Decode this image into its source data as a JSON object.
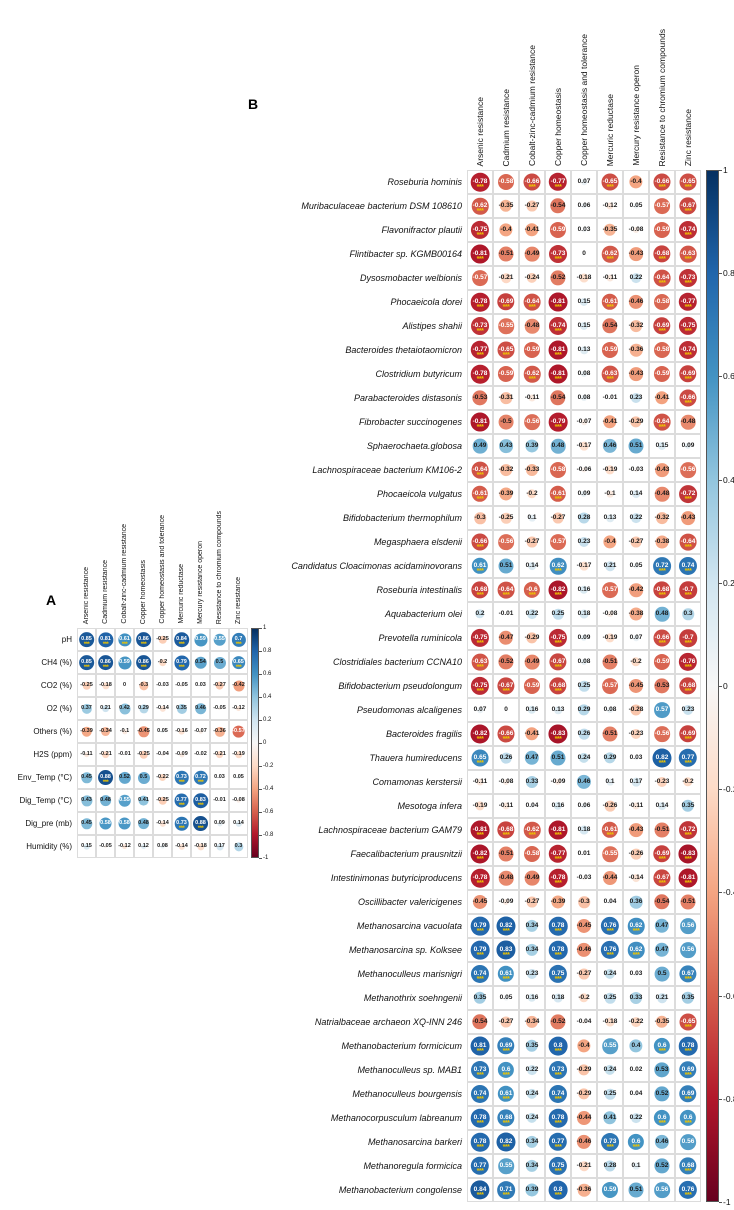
{
  "figure": {
    "panel_a_label": "A",
    "panel_b_label": "B"
  },
  "colorbar": {
    "ticks": [
      "1",
      "0.8",
      "0.6",
      "0.4",
      "0.2",
      "0",
      "-0.2",
      "-0.4",
      "-0.6",
      "-0.8",
      "-1"
    ],
    "top_color": "#053061",
    "zero_color": "#f7f7f7",
    "bottom_color": "#67001f"
  },
  "significance": {
    "marker": "***",
    "shown_when_abs_value_at_least": 0.6,
    "color": "#edc400"
  },
  "chart_data": [
    {
      "type": "heatmap",
      "panel": "A",
      "legend_position": "right",
      "value_range": [
        -1,
        1
      ],
      "columns": [
        "Arsenic resistance",
        "Cadmium resistance",
        "Cobalt-zinc-cadmium resistance",
        "Copper homeostasis",
        "Copper homeostasis and tolerance",
        "Mercuric reductase",
        "Mercury resistance operon",
        "Resistance to chromium compounds",
        "Zinc resistance"
      ],
      "rows": [
        "pH",
        "CH4 (%)",
        "CO2 (%)",
        "O2 (%)",
        "Others (%)",
        "H2S (ppm)",
        "Env_Temp (°C)",
        "Dig_Temp (°C)",
        "Dig_pre (mb)",
        "Humidity (%)"
      ],
      "values": [
        [
          0.85,
          0.81,
          0.61,
          0.86,
          -0.25,
          0.84,
          0.59,
          0.55,
          0.7
        ],
        [
          0.85,
          0.86,
          0.59,
          0.86,
          -0.2,
          0.79,
          0.54,
          0.5,
          0.65
        ],
        [
          -0.25,
          -0.18,
          0,
          -0.3,
          -0.03,
          -0.05,
          0.03,
          -0.27,
          -0.42
        ],
        [
          0.37,
          0.21,
          0.42,
          0.29,
          -0.14,
          0.35,
          0.46,
          -0.05,
          -0.12
        ],
        [
          -0.39,
          -0.34,
          -0.1,
          -0.45,
          0.05,
          -0.16,
          -0.07,
          -0.36,
          -0.57
        ],
        [
          -0.11,
          -0.21,
          -0.01,
          -0.25,
          -0.04,
          -0.09,
          -0.02,
          -0.21,
          -0.19
        ],
        [
          0.45,
          0.88,
          0.52,
          0.5,
          -0.22,
          0.73,
          0.72,
          0.03,
          0.05
        ],
        [
          0.43,
          0.48,
          0.55,
          0.41,
          -0.25,
          0.77,
          0.83,
          -0.01,
          -0.08
        ],
        [
          0.45,
          0.58,
          0.58,
          0.48,
          -0.14,
          0.73,
          0.88,
          0.09,
          0.14
        ],
        [
          0.15,
          -0.05,
          -0.12,
          0.12,
          0.08,
          -0.14,
          -0.18,
          0.17,
          0.3
        ]
      ]
    },
    {
      "type": "heatmap",
      "panel": "B",
      "legend_position": "right",
      "value_range": [
        -1,
        1
      ],
      "columns": [
        "Arsenic resistance",
        "Cadmium resistance",
        "Cobalt-zinc-cadmium resistance",
        "Copper homeostasis",
        "Copper homeostasis and tolerance",
        "Mercuric reductase",
        "Mercury resistance operon",
        "Resistance to chromium compounds",
        "Zinc resistance"
      ],
      "rows": [
        "Roseburia hominis",
        "Muribaculaceae bacterium DSM 108610",
        "Flavonifractor plautii",
        "Flintibacter sp. KGMB00164",
        "Dysosmobacter welbionis",
        "Phocaeicola dorei",
        "Alistipes shahii",
        "Bacteroides thetaiotaomicron",
        "Clostridium butyricum",
        "Parabacteroides distasonis",
        "Fibrobacter succinogenes",
        "Sphaerochaeta.globosa",
        "Lachnospiraceae bacterium KM106-2",
        "Phocaeicola vulgatus",
        "Bifidobacterium thermophilum",
        "Megasphaera elsdenii",
        "Candidatus Cloacimonas acidaminovorans",
        "Roseburia intestinalis",
        "Aquabacterium olei",
        "Prevotella ruminicola",
        "Clostridiales bacterium CCNA10",
        "Bifidobacterium pseudolongum",
        "Pseudomonas alcaligenes",
        "Bacteroides fragilis",
        "Thauera humireducens",
        "Comamonas kerstersii",
        "Mesotoga infera",
        "Lachnospiraceae bacterium GAM79",
        "Faecalibacterium prausnitzii",
        "Intestinimonas butyriciproducens",
        "Oscillibacter valericigenes",
        "Methanosarcina vacuolata",
        "Methanosarcina sp. Kolksee",
        "Methanoculleus marisnigri",
        "Methanothrix soehngenii",
        "Natrialbaceae archaeon XQ-INN 246",
        "Methanobacterium formicicum",
        "Methanoculleus sp. MAB1",
        "Methanoculleus bourgensis",
        "Methanocorpusculum labreanum",
        "Methanosarcina barkeri",
        "Methanoregula formicica",
        "Methanobacterium congolense"
      ],
      "values": [
        [
          -0.78,
          -0.58,
          -0.66,
          -0.77,
          0.07,
          -0.65,
          -0.4,
          -0.66,
          -0.65
        ],
        [
          -0.62,
          -0.35,
          -0.27,
          -0.54,
          0.06,
          -0.12,
          0.05,
          -0.57,
          -0.67
        ],
        [
          -0.75,
          -0.4,
          -0.41,
          -0.59,
          0.03,
          -0.35,
          -0.08,
          -0.59,
          -0.74
        ],
        [
          -0.81,
          -0.51,
          -0.49,
          -0.73,
          0,
          -0.62,
          -0.43,
          -0.68,
          -0.63
        ],
        [
          -0.57,
          -0.21,
          -0.24,
          -0.52,
          -0.18,
          -0.11,
          0.22,
          -0.64,
          -0.73
        ],
        [
          -0.78,
          -0.69,
          -0.64,
          -0.81,
          0.15,
          -0.61,
          -0.46,
          -0.58,
          -0.77
        ],
        [
          -0.73,
          -0.55,
          -0.48,
          -0.74,
          0.15,
          -0.54,
          -0.32,
          -0.69,
          -0.75
        ],
        [
          -0.77,
          -0.65,
          -0.59,
          -0.81,
          0.13,
          -0.59,
          -0.36,
          -0.58,
          -0.74
        ],
        [
          -0.78,
          -0.59,
          -0.62,
          -0.81,
          0.08,
          -0.63,
          -0.43,
          -0.59,
          -0.69
        ],
        [
          -0.53,
          -0.31,
          -0.11,
          -0.54,
          0.08,
          -0.01,
          0.23,
          -0.41,
          -0.66
        ],
        [
          -0.81,
          -0.5,
          -0.56,
          -0.79,
          -0.07,
          -0.41,
          -0.29,
          -0.64,
          -0.48
        ],
        [
          0.49,
          0.43,
          0.39,
          0.48,
          -0.17,
          0.46,
          0.51,
          0.15,
          0.09
        ],
        [
          -0.64,
          -0.32,
          -0.33,
          -0.58,
          -0.06,
          -0.19,
          -0.03,
          -0.43,
          -0.56
        ],
        [
          -0.61,
          -0.39,
          -0.2,
          -0.61,
          0.09,
          -0.1,
          0.14,
          -0.48,
          -0.72
        ],
        [
          -0.3,
          -0.25,
          0.1,
          -0.27,
          0.28,
          0.13,
          0.22,
          -0.32,
          -0.43
        ],
        [
          -0.66,
          -0.56,
          -0.27,
          -0.57,
          0.23,
          -0.4,
          -0.27,
          -0.38,
          -0.64
        ],
        [
          0.61,
          0.51,
          0.14,
          0.62,
          -0.17,
          0.21,
          0.05,
          0.72,
          0.74
        ],
        [
          -0.68,
          -0.64,
          -0.6,
          -0.82,
          0.16,
          -0.57,
          -0.42,
          -0.68,
          -0.7
        ],
        [
          0.2,
          -0.01,
          0.22,
          0.25,
          0.18,
          -0.08,
          -0.38,
          0.48,
          0.3
        ],
        [
          -0.75,
          -0.47,
          -0.29,
          -0.75,
          0.09,
          -0.19,
          0.07,
          -0.66,
          -0.7
        ],
        [
          -0.63,
          -0.52,
          -0.49,
          -0.67,
          0.08,
          -0.51,
          -0.2,
          -0.59,
          -0.76
        ],
        [
          -0.75,
          -0.67,
          -0.59,
          -0.68,
          0.25,
          -0.57,
          -0.45,
          -0.53,
          -0.68
        ],
        [
          0.07,
          0,
          0.16,
          0.13,
          0.29,
          0.08,
          -0.28,
          0.57,
          0.23
        ],
        [
          -0.82,
          -0.66,
          -0.41,
          -0.83,
          0.26,
          -0.51,
          -0.23,
          -0.56,
          -0.69
        ],
        [
          0.65,
          0.26,
          0.47,
          0.51,
          0.24,
          0.29,
          0.03,
          0.82,
          0.77
        ],
        [
          -0.11,
          -0.08,
          0.33,
          -0.09,
          0.46,
          0.1,
          0.17,
          -0.23,
          -0.2
        ],
        [
          -0.19,
          -0.11,
          0.04,
          0.16,
          0.06,
          -0.26,
          -0.11,
          0.14,
          0.35
        ],
        [
          -0.81,
          -0.68,
          -0.62,
          -0.81,
          0.18,
          -0.61,
          -0.43,
          -0.51,
          -0.72
        ],
        [
          -0.82,
          -0.51,
          -0.58,
          -0.77,
          0.01,
          -0.55,
          -0.26,
          -0.69,
          -0.83
        ],
        [
          -0.78,
          -0.48,
          -0.49,
          -0.78,
          -0.03,
          -0.44,
          -0.14,
          -0.67,
          -0.81
        ],
        [
          -0.45,
          -0.09,
          -0.27,
          -0.39,
          -0.3,
          0.04,
          0.36,
          -0.54,
          -0.51
        ],
        [
          0.79,
          0.82,
          0.34,
          0.78,
          -0.45,
          0.76,
          0.62,
          0.47,
          0.56
        ],
        [
          0.79,
          0.83,
          0.34,
          0.78,
          -0.46,
          0.76,
          0.62,
          0.47,
          0.56
        ],
        [
          0.74,
          0.61,
          0.23,
          0.75,
          -0.27,
          0.24,
          0.03,
          0.5,
          0.67
        ],
        [
          0.35,
          0.05,
          0.16,
          0.18,
          -0.2,
          0.25,
          0.33,
          0.21,
          0.35
        ],
        [
          -0.54,
          -0.27,
          -0.34,
          -0.52,
          -0.04,
          -0.18,
          -0.22,
          -0.35,
          -0.65
        ],
        [
          0.81,
          0.69,
          0.35,
          0.8,
          -0.4,
          0.55,
          0.4,
          0.6,
          0.78
        ],
        [
          0.73,
          0.6,
          0.22,
          0.73,
          -0.29,
          0.24,
          0.02,
          0.53,
          0.69
        ],
        [
          0.74,
          0.61,
          0.24,
          0.74,
          -0.29,
          0.25,
          0.04,
          0.52,
          0.69
        ],
        [
          0.78,
          0.68,
          0.24,
          0.78,
          -0.44,
          0.41,
          0.22,
          0.6,
          0.6
        ],
        [
          0.78,
          0.82,
          0.34,
          0.77,
          -0.46,
          0.73,
          0.6,
          0.46,
          0.56
        ],
        [
          0.77,
          0.55,
          0.34,
          0.75,
          -0.21,
          0.28,
          0.1,
          0.52,
          0.68
        ],
        [
          0.84,
          0.71,
          0.39,
          0.8,
          -0.36,
          0.59,
          0.51,
          0.56,
          0.76
        ]
      ]
    }
  ]
}
